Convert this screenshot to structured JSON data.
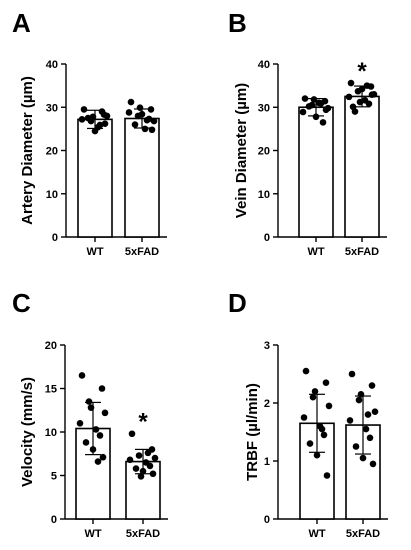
{
  "chart_data": [
    {
      "type": "bar",
      "panel": "A",
      "ylabel": "Artery Diameter (µm)",
      "categories": [
        "WT",
        "5xFAD"
      ],
      "ylim": [
        0,
        40
      ],
      "yticks": [
        0,
        10,
        20,
        30,
        40
      ],
      "means": [
        27.2,
        27.4
      ],
      "sd": [
        2.1,
        2.2
      ],
      "points": [
        [
          29.5,
          28.3,
          26.8,
          28.0,
          27.2,
          25.4,
          29.0,
          27.5,
          24.5,
          26.2,
          27.8,
          25.9
        ],
        [
          31.2,
          29.5,
          28.0,
          26.8,
          28.8,
          25.0,
          27.3,
          26.0,
          28.4,
          24.8,
          29.9,
          27.0
        ]
      ],
      "significance": [
        "",
        ""
      ]
    },
    {
      "type": "bar",
      "panel": "B",
      "ylabel": "Vein Diameter (µm)",
      "categories": [
        "WT",
        "5xFAD"
      ],
      "ylim": [
        0,
        40
      ],
      "yticks": [
        0,
        10,
        20,
        30,
        40
      ],
      "means": [
        30.0,
        32.5
      ],
      "sd": [
        2.0,
        2.4
      ],
      "points": [
        [
          32.0,
          31.4,
          30.5,
          29.8,
          28.9,
          31.0,
          26.5,
          30.2,
          27.8,
          29.4,
          31.8,
          30.9
        ],
        [
          35.6,
          34.8,
          33.7,
          33.0,
          32.4,
          31.6,
          30.8,
          29.0,
          34.2,
          32.9,
          31.2,
          35.0,
          30.1
        ]
      ],
      "significance": [
        "",
        "*"
      ]
    },
    {
      "type": "bar",
      "panel": "C",
      "ylabel": "Velocity (mm/s)",
      "categories": [
        "WT",
        "5xFAD"
      ],
      "ylim": [
        0,
        20
      ],
      "yticks": [
        0,
        5,
        10,
        15,
        20
      ],
      "means": [
        10.4,
        6.6
      ],
      "sd": [
        3.0,
        1.4
      ],
      "points": [
        [
          16.5,
          15.0,
          13.5,
          12.2,
          11.0,
          10.3,
          9.6,
          8.8,
          8.0,
          7.1,
          12.8,
          6.6
        ],
        [
          9.8,
          8.0,
          7.3,
          7.0,
          6.8,
          6.5,
          6.1,
          5.8,
          5.5,
          5.2,
          4.9,
          7.6
        ]
      ],
      "significance": [
        "",
        "*"
      ]
    },
    {
      "type": "bar",
      "panel": "D",
      "ylabel": "TRBF (µl/min)",
      "categories": [
        "WT",
        "5xFAD"
      ],
      "ylim": [
        0,
        3
      ],
      "yticks": [
        0,
        1,
        2,
        3
      ],
      "means": [
        1.65,
        1.62
      ],
      "sd": [
        0.5,
        0.5
      ],
      "points": [
        [
          2.55,
          2.35,
          2.1,
          1.95,
          1.75,
          1.6,
          1.45,
          1.3,
          1.1,
          0.75,
          2.2,
          1.55
        ],
        [
          2.5,
          2.3,
          2.05,
          1.85,
          1.7,
          1.55,
          1.4,
          1.25,
          1.05,
          0.95,
          2.15,
          1.8
        ]
      ],
      "significance": [
        "",
        ""
      ]
    }
  ]
}
